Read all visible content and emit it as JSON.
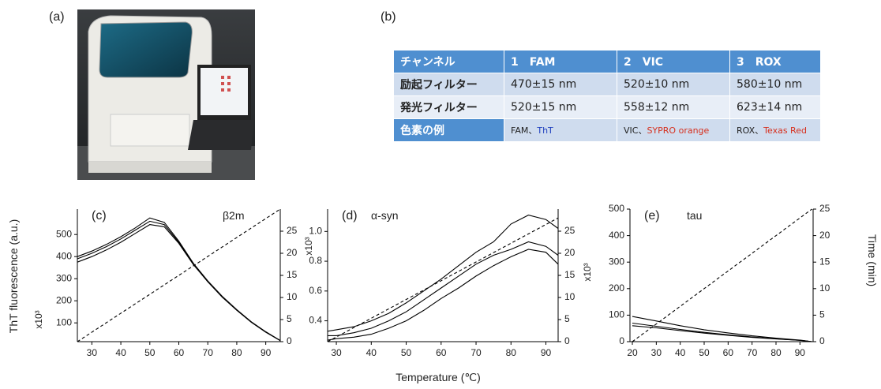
{
  "panels": {
    "a": "(a)",
    "b": "(b)"
  },
  "table": {
    "header": [
      "チャンネル",
      "1　FAM",
      "2　VIC",
      "3　ROX"
    ],
    "rows": [
      [
        "励起フィルター",
        "470±15 nm",
        "520±10 nm",
        "580±10 nm"
      ],
      [
        "発光フィルター",
        "520±15 nm",
        "558±12 nm",
        "623±14 nm"
      ]
    ],
    "example_row": {
      "label": "色素の例",
      "cells": [
        [
          "FAM、",
          "ThT"
        ],
        [
          "VIC、",
          "SYPRO orange"
        ],
        [
          "ROX、",
          "Texas Red"
        ]
      ]
    }
  },
  "chart_data": [
    {
      "type": "line",
      "panel": "(c)",
      "title": "β2m",
      "ylabel": "ThT fluorescence (a.u.)",
      "y_multiplier": "x10³",
      "y2_multiplier": "x10³",
      "x": [
        25,
        30,
        35,
        40,
        45,
        50,
        55,
        60,
        65,
        70,
        75,
        80,
        85,
        90,
        95
      ],
      "xlim": [
        25,
        95
      ],
      "xticks": [
        30,
        40,
        50,
        60,
        70,
        80,
        90
      ],
      "ylim": [
        15,
        615
      ],
      "yticks": [
        100,
        200,
        300,
        400,
        500
      ],
      "y2lim": [
        0,
        30
      ],
      "y2ticks": [
        0,
        5,
        10,
        15,
        20,
        25
      ],
      "series": [
        {
          "color": "#000000",
          "values": [
            400,
            425,
            455,
            490,
            530,
            575,
            555,
            470,
            370,
            290,
            220,
            160,
            105,
            60,
            20
          ]
        },
        {
          "color": "#000000",
          "values": [
            390,
            415,
            445,
            480,
            520,
            560,
            545,
            465,
            367,
            288,
            218,
            158,
            104,
            59,
            20
          ]
        },
        {
          "color": "#000000",
          "values": [
            375,
            400,
            430,
            465,
            505,
            545,
            535,
            460,
            364,
            286,
            216,
            157,
            103,
            58,
            20
          ]
        },
        {
          "color": "#000000",
          "dashed": true,
          "axis": "y2",
          "x": [
            25,
            95
          ],
          "values": [
            0,
            30
          ]
        }
      ]
    },
    {
      "type": "line",
      "panel": "(d)",
      "title": "α-syn",
      "xlabel": "Temperature (℃)",
      "y2_multiplier": "x10³",
      "x": [
        27.5,
        30,
        35,
        40,
        45,
        50,
        55,
        60,
        65,
        70,
        75,
        80,
        85,
        90,
        93.5
      ],
      "xlim": [
        27.5,
        93.5
      ],
      "xticks": [
        30,
        40,
        50,
        60,
        70,
        80,
        90
      ],
      "ylim": [
        0.26,
        1.15
      ],
      "yticks": [
        0.4,
        0.6,
        0.8,
        {
          "value": 1,
          "label": "1.0"
        }
      ],
      "y2lim": [
        0,
        30
      ],
      "y2ticks": [
        0,
        5,
        10,
        15,
        20,
        25
      ],
      "series": [
        {
          "color": "#000000",
          "values": [
            0.33,
            0.34,
            0.36,
            0.4,
            0.45,
            0.52,
            0.6,
            0.68,
            0.77,
            0.86,
            0.93,
            1.05,
            1.11,
            1.08,
            1.02
          ]
        },
        {
          "color": "#000000",
          "values": [
            0.3,
            0.3,
            0.32,
            0.35,
            0.4,
            0.46,
            0.54,
            0.62,
            0.7,
            0.78,
            0.84,
            0.88,
            0.93,
            0.9,
            0.84
          ]
        },
        {
          "color": "#000000",
          "values": [
            0.27,
            0.28,
            0.29,
            0.31,
            0.35,
            0.4,
            0.47,
            0.55,
            0.62,
            0.7,
            0.77,
            0.83,
            0.88,
            0.86,
            0.78
          ]
        },
        {
          "color": "#000000",
          "dashed": true,
          "axis": "y2",
          "x": [
            27.5,
            93.5
          ],
          "values": [
            0,
            28
          ]
        }
      ]
    },
    {
      "type": "line",
      "panel": "(e)",
      "title": "tau",
      "y2label": "Time (min)",
      "x": [
        20,
        30,
        40,
        50,
        60,
        70,
        80,
        90,
        95
      ],
      "xlim": [
        19,
        95.5
      ],
      "xticks": [
        20,
        30,
        40,
        50,
        60,
        70,
        80,
        90
      ],
      "ylim": [
        0,
        500
      ],
      "yticks": [
        0,
        100,
        200,
        300,
        400,
        500
      ],
      "y2lim": [
        0,
        25
      ],
      "y2ticks": [
        0,
        5,
        10,
        15,
        20,
        25
      ],
      "series": [
        {
          "color": "#000000",
          "values": [
            95,
            78,
            60,
            45,
            33,
            22,
            13,
            6,
            0
          ]
        },
        {
          "color": "#000000",
          "values": [
            70,
            58,
            46,
            35,
            26,
            18,
            11,
            5,
            0
          ]
        },
        {
          "color": "#000000",
          "values": [
            60,
            52,
            42,
            32,
            24,
            16,
            10,
            5,
            0
          ]
        },
        {
          "color": "#000000",
          "dashed": true,
          "axis": "y2",
          "x": [
            20,
            95
          ],
          "values": [
            0,
            25
          ]
        }
      ]
    }
  ]
}
